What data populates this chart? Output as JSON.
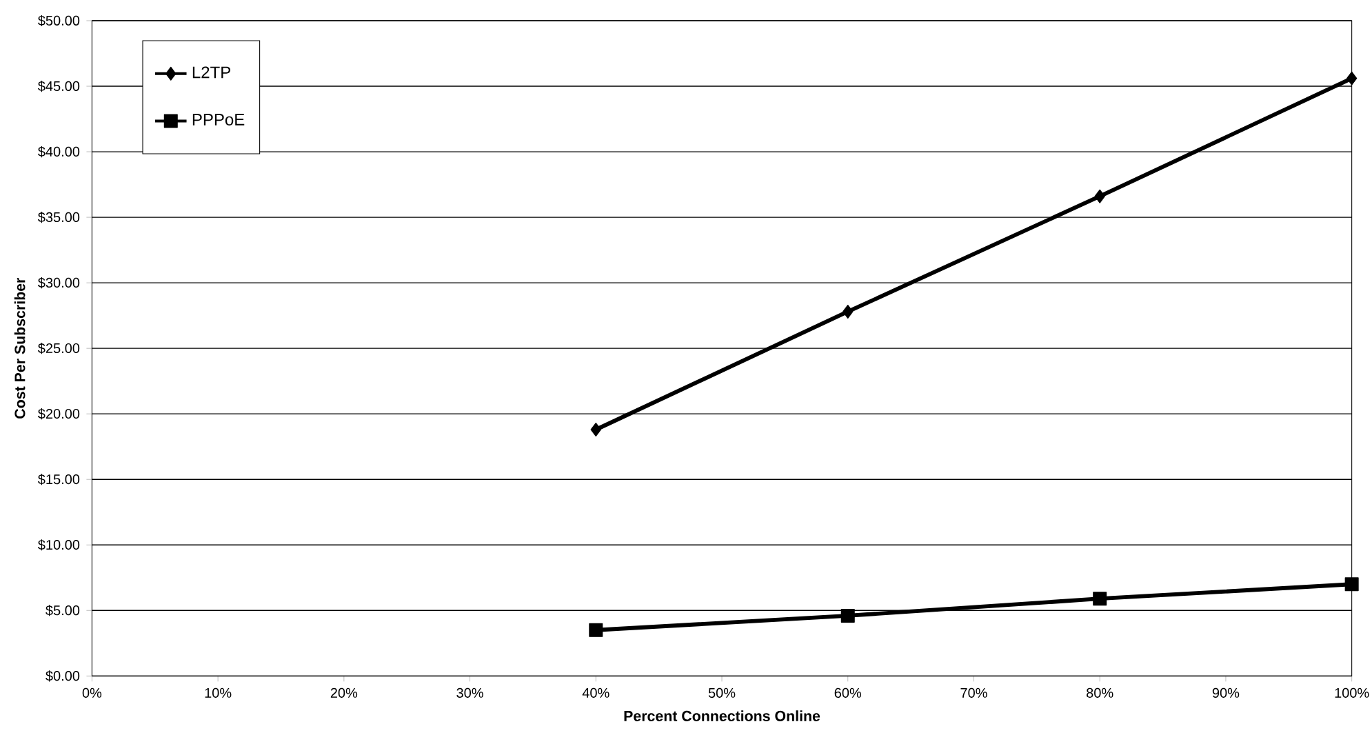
{
  "chart_data": {
    "type": "line",
    "xlabel": "Percent Connections Online",
    "ylabel": "Cost Per Subscriber",
    "x": [
      40,
      60,
      80,
      100
    ],
    "series": [
      {
        "name": "L2TP",
        "color": "#000000",
        "marker": "diamond",
        "values": [
          18.8,
          27.8,
          36.6,
          45.6
        ]
      },
      {
        "name": "PPPoE",
        "color": "#000000",
        "marker": "square",
        "values": [
          3.5,
          4.6,
          5.9,
          7.0
        ]
      }
    ],
    "xlim": [
      0,
      100
    ],
    "xticks": [
      {
        "value": 0,
        "label": "0%"
      },
      {
        "value": 10,
        "label": "10%"
      },
      {
        "value": 20,
        "label": "20%"
      },
      {
        "value": 30,
        "label": "30%"
      },
      {
        "value": 40,
        "label": "40%"
      },
      {
        "value": 50,
        "label": "50%"
      },
      {
        "value": 60,
        "label": "60%"
      },
      {
        "value": 70,
        "label": "70%"
      },
      {
        "value": 80,
        "label": "80%"
      },
      {
        "value": 90,
        "label": "90%"
      },
      {
        "value": 100,
        "label": "100%"
      }
    ],
    "ylim": [
      0,
      50
    ],
    "yticks": [
      {
        "value": 0,
        "label": "$0.00"
      },
      {
        "value": 5,
        "label": "$5.00"
      },
      {
        "value": 10,
        "label": "$10.00"
      },
      {
        "value": 15,
        "label": "$15.00"
      },
      {
        "value": 20,
        "label": "$20.00"
      },
      {
        "value": 25,
        "label": "$25.00"
      },
      {
        "value": 30,
        "label": "$30.00"
      },
      {
        "value": 35,
        "label": "$35.00"
      },
      {
        "value": 40,
        "label": "$40.00"
      },
      {
        "value": 45,
        "label": "$45.00"
      },
      {
        "value": 50,
        "label": "$50.00"
      }
    ],
    "grid": "y",
    "legend": "top left",
    "line_style": "solid"
  }
}
